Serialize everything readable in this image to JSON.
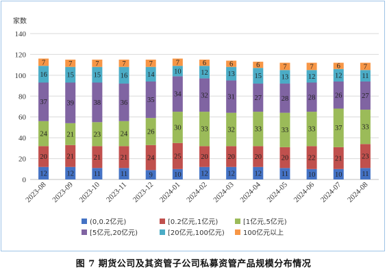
{
  "caption": "图 7   期货公司及其资管子公司私募资管产品规模分布情况",
  "chart_data": {
    "type": "bar",
    "stacked": true,
    "ylabel": "家数",
    "ylim": [
      0,
      140
    ],
    "yticks": [
      0,
      20,
      40,
      60,
      80,
      100,
      120,
      140
    ],
    "grid": true,
    "legend_position": "bottom",
    "categories": [
      "2023-08",
      "2023-09",
      "2023-10",
      "2023-11",
      "2023-12",
      "2024-01",
      "2024-02",
      "2024-03",
      "2024-04",
      "2024-05",
      "2024-06",
      "2024-07",
      "2024-08"
    ],
    "series": [
      {
        "name": "(0,0.2亿元)",
        "color": "#4472c4",
        "values": [
          12,
          12,
          11,
          11,
          9,
          10,
          12,
          12,
          12,
          11,
          10,
          10,
          11
        ]
      },
      {
        "name": "[0.2亿元,1亿元)",
        "color": "#c0504d",
        "values": [
          20,
          21,
          21,
          21,
          24,
          25,
          20,
          20,
          20,
          20,
          22,
          21,
          23
        ]
      },
      {
        "name": "[1亿元,5亿元)",
        "color": "#9bbb59",
        "values": [
          24,
          21,
          23,
          24,
          26,
          30,
          33,
          32,
          33,
          33,
          33,
          37,
          33
        ]
      },
      {
        "name": "[5亿元,20亿元)",
        "color": "#8064a2",
        "values": [
          37,
          39,
          38,
          36,
          35,
          34,
          32,
          31,
          27,
          28,
          28,
          26,
          27
        ]
      },
      {
        "name": "[20亿元,100亿元)",
        "color": "#4bacc6",
        "values": [
          16,
          15,
          15,
          16,
          14,
          10,
          12,
          13,
          15,
          13,
          12,
          12,
          11
        ]
      },
      {
        "name": "100亿元以上",
        "color": "#f79646",
        "values": [
          7,
          7,
          7,
          7,
          7,
          7,
          6,
          6,
          6,
          7,
          7,
          6,
          7
        ]
      }
    ]
  }
}
